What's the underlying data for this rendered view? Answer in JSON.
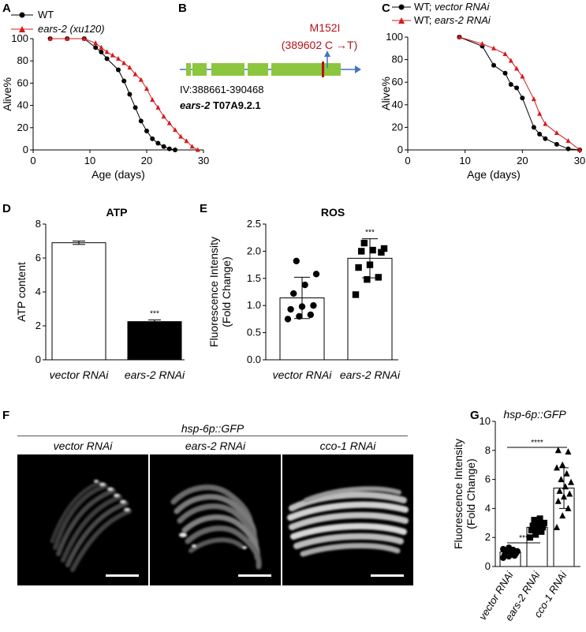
{
  "panels": {
    "A": "A",
    "B": "B",
    "C": "C",
    "D": "D",
    "E": "E",
    "F": "F",
    "G": "G"
  },
  "panel_a": {
    "legend": [
      {
        "text": "WT",
        "italic": false,
        "color": "#000000",
        "marker": "circle"
      },
      {
        "text": "ears-2 (xu120)",
        "italic": true,
        "color": "#d7191c",
        "marker": "triangle"
      }
    ]
  },
  "panel_b": {
    "mutation_label": "M152I",
    "mutation_detail": "(389602 C →T)",
    "coords": "IV:388661-390468",
    "gene_name": "ears-2",
    "gene_id": "T07A9.2.1",
    "exon_color": "#8cc63e",
    "arrow_color": "#4472c4",
    "mutation_color": "#b5121b"
  },
  "panel_c": {
    "legend_wt_prefix": "WT; ",
    "legend_vector": "vector RNAi",
    "legend_ears": "ears-2 RNAi"
  },
  "panel_f": {
    "construct": "hsp-6p::GFP",
    "conditions": [
      "vector RNAi",
      "ears-2 RNAi",
      "cco-1 RNAi"
    ]
  },
  "chart_data": [
    {
      "id": "A",
      "type": "line",
      "title": "",
      "xlabel": "Age (days)",
      "ylabel": "Alive%",
      "xlim": [
        0,
        30
      ],
      "ylim": [
        0,
        100
      ],
      "xticks": [
        0,
        10,
        20,
        30
      ],
      "yticks": [
        0,
        20,
        40,
        60,
        80,
        100
      ],
      "series": [
        {
          "name": "WT",
          "color": "#000000",
          "marker": "circle",
          "x": [
            3,
            6,
            9,
            11,
            12,
            13,
            15,
            16,
            17,
            18,
            19,
            20,
            21,
            22,
            23,
            24,
            25
          ],
          "y": [
            100,
            100,
            100,
            92,
            88,
            82,
            72,
            62,
            50,
            38,
            26,
            17,
            10,
            6,
            3,
            1,
            0
          ]
        },
        {
          "name": "ears-2 (xu120)",
          "color": "#d7191c",
          "marker": "triangle",
          "x": [
            3,
            6,
            9,
            11,
            12,
            13,
            14,
            15,
            16,
            17,
            18,
            19,
            20,
            21,
            22,
            23,
            24,
            25,
            26,
            27,
            28,
            29
          ],
          "y": [
            100,
            100,
            100,
            96,
            92,
            88,
            85,
            82,
            78,
            74,
            68,
            63,
            55,
            45,
            38,
            30,
            24,
            18,
            12,
            8,
            3,
            0
          ]
        }
      ]
    },
    {
      "id": "C",
      "type": "line",
      "title": "",
      "xlabel": "Age (days)",
      "ylabel": "Alive%",
      "xlim": [
        0,
        30
      ],
      "ylim": [
        0,
        100
      ],
      "xticks": [
        0,
        10,
        20,
        30
      ],
      "yticks": [
        0,
        20,
        40,
        60,
        80,
        100
      ],
      "series": [
        {
          "name": "WT; vector RNAi",
          "color": "#000000",
          "marker": "circle",
          "x": [
            9,
            13,
            15,
            17,
            18,
            19,
            20,
            22,
            23,
            24,
            26,
            28,
            30
          ],
          "y": [
            100,
            92,
            75,
            68,
            58,
            55,
            46,
            20,
            14,
            10,
            5,
            1,
            0
          ]
        },
        {
          "name": "WT; ears-2 RNAi",
          "color": "#d7191c",
          "marker": "triangle",
          "x": [
            9,
            13,
            15,
            17,
            18,
            19,
            20,
            22,
            23,
            24,
            26,
            28,
            30
          ],
          "y": [
            100,
            94,
            90,
            85,
            79,
            72,
            65,
            45,
            32,
            23,
            15,
            8,
            0
          ]
        }
      ]
    },
    {
      "id": "D",
      "type": "bar",
      "title": "ATP",
      "xlabel": "",
      "ylabel": "ATP content",
      "ylim": [
        0,
        8
      ],
      "yticks": [
        0,
        2,
        4,
        6,
        8
      ],
      "categories": [
        "vector RNAi",
        "ears-2 RNAi"
      ],
      "values": [
        6.9,
        2.25
      ],
      "errors": [
        0.1,
        0.1
      ],
      "fills": [
        "#ffffff",
        "#000000"
      ],
      "significance": [
        "",
        "***"
      ]
    },
    {
      "id": "E",
      "type": "bar",
      "title": "ROS",
      "xlabel": "",
      "ylabel": "Fluorescence Intensity",
      "ylabel2": "(Fold Change)",
      "ylim": [
        0,
        2.5
      ],
      "yticks": [
        "0.0",
        "0.5",
        "1.0",
        "1.5",
        "2.0",
        "2.5"
      ],
      "categories": [
        "vector RNAi",
        "ears-2 RNAi"
      ],
      "values": [
        1.14,
        1.87
      ],
      "errors": [
        0.38,
        0.36
      ],
      "markers": [
        "circle",
        "square"
      ],
      "points": [
        [
          0.75,
          0.8,
          0.83,
          0.93,
          0.98,
          1.0,
          1.22,
          1.38,
          1.58,
          1.82
        ],
        [
          1.2,
          1.48,
          1.52,
          1.7,
          1.75,
          1.98,
          2.0,
          2.02,
          2.05,
          2.15
        ]
      ],
      "significance": [
        "",
        "***"
      ]
    },
    {
      "id": "G",
      "type": "bar",
      "title": "hsp-6p::GFP",
      "xlabel": "",
      "ylabel": "Fluorescence Intensity",
      "ylabel2": "(Fold Change)",
      "ylim": [
        0,
        10
      ],
      "yticks": [
        0,
        2,
        4,
        6,
        8,
        10
      ],
      "categories": [
        "vector RNAi",
        "ears-2 RNAi",
        "cco-1 RNAi"
      ],
      "values": [
        1.0,
        2.7,
        5.4
      ],
      "errors": [
        0.2,
        0.4,
        1.4
      ],
      "markers": [
        "circle",
        "square",
        "triangle"
      ],
      "points": [
        [
          0.6,
          0.7,
          0.75,
          0.8,
          0.85,
          0.9,
          0.95,
          1.0,
          1.05,
          1.1,
          1.15,
          1.2,
          1.3
        ],
        [
          2.0,
          2.2,
          2.4,
          2.5,
          2.6,
          2.7,
          2.8,
          2.9,
          3.0,
          3.2,
          3.3
        ],
        [
          2.7,
          3.5,
          4.0,
          4.5,
          4.8,
          5.0,
          5.2,
          5.5,
          5.8,
          6.0,
          6.4,
          6.8,
          7.0,
          7.9,
          8.0
        ]
      ],
      "comparisons": [
        {
          "label": "***",
          "from": 0,
          "to": 1
        },
        {
          "label": "****",
          "from": 0,
          "to": 2
        }
      ]
    }
  ]
}
